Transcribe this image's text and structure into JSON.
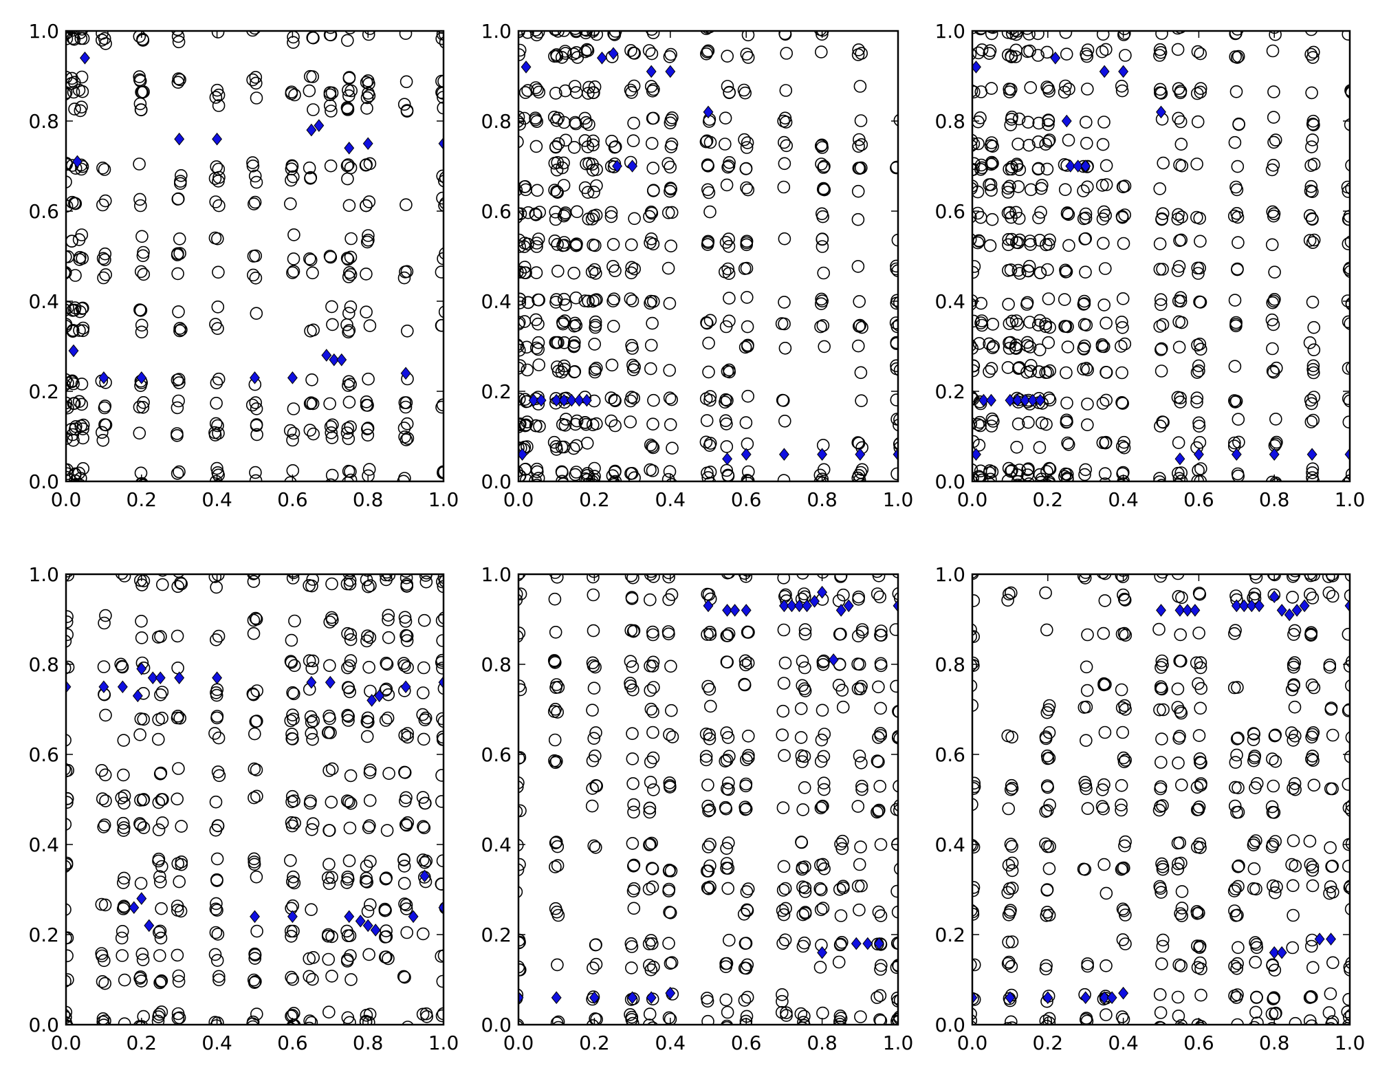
{
  "figure": {
    "layout": "2x3 grid of scatter panels",
    "colors": {
      "circle_edge": "#000000",
      "circle_fill": "none",
      "diamond_fill": "#1010e0",
      "diamond_edge": "#000000",
      "axes": "#000000"
    },
    "marker_types": [
      "open-circle",
      "filled-diamond"
    ]
  },
  "chart_data": [
    {
      "type": "scatter",
      "title": "",
      "xlabel": "",
      "ylabel": "",
      "xlim": [
        0,
        1
      ],
      "ylim": [
        0,
        1
      ],
      "xticks": [
        "0.0",
        "0.2",
        "0.4",
        "0.6",
        "0.8",
        "1.0"
      ],
      "yticks": [
        "0.0",
        "0.2",
        "0.4",
        "0.6",
        "0.8",
        "1.0"
      ],
      "grid": false,
      "circle_columns_x": [
        0.0,
        0.02,
        0.04,
        0.1,
        0.2,
        0.3,
        0.4,
        0.5,
        0.6,
        0.65,
        0.7,
        0.75,
        0.8,
        0.9,
        1.0
      ],
      "circle_rows_y": [
        0.0,
        0.02,
        0.1,
        0.12,
        0.17,
        0.22,
        0.34,
        0.38,
        0.46,
        0.5,
        0.54,
        0.62,
        0.67,
        0.7,
        0.83,
        0.86,
        0.89,
        0.98,
        1.0
      ],
      "diamonds": [
        [
          0.05,
          0.94
        ],
        [
          0.03,
          0.71
        ],
        [
          0.3,
          0.76
        ],
        [
          0.4,
          0.76
        ],
        [
          0.65,
          0.78
        ],
        [
          0.67,
          0.79
        ],
        [
          0.75,
          0.74
        ],
        [
          0.8,
          0.75
        ],
        [
          1.0,
          0.75
        ],
        [
          0.02,
          0.29
        ],
        [
          0.1,
          0.23
        ],
        [
          0.2,
          0.23
        ],
        [
          0.5,
          0.23
        ],
        [
          0.6,
          0.23
        ],
        [
          0.69,
          0.28
        ],
        [
          0.71,
          0.27
        ],
        [
          0.73,
          0.27
        ],
        [
          0.9,
          0.24
        ]
      ]
    },
    {
      "type": "scatter",
      "title": "",
      "xlabel": "",
      "ylabel": "",
      "xlim": [
        0,
        1
      ],
      "ylim": [
        0,
        1
      ],
      "xticks": [
        "0.0",
        "0.2",
        "0.4",
        "0.6",
        "0.8",
        "1.0"
      ],
      "yticks": [
        "0.0",
        "0.2",
        "0.4",
        "0.6",
        "0.8",
        "1.0"
      ],
      "grid": false,
      "circle_columns_x": [
        0.0,
        0.02,
        0.05,
        0.1,
        0.12,
        0.15,
        0.18,
        0.2,
        0.25,
        0.3,
        0.35,
        0.4,
        0.5,
        0.55,
        0.6,
        0.7,
        0.8,
        0.9,
        1.0
      ],
      "circle_rows_y": [
        0.0,
        0.02,
        0.08,
        0.13,
        0.18,
        0.25,
        0.3,
        0.35,
        0.4,
        0.47,
        0.53,
        0.59,
        0.65,
        0.7,
        0.75,
        0.8,
        0.87,
        0.95,
        1.0
      ],
      "diamonds": [
        [
          0.02,
          0.92
        ],
        [
          0.22,
          0.94
        ],
        [
          0.25,
          0.95
        ],
        [
          0.35,
          0.91
        ],
        [
          0.4,
          0.91
        ],
        [
          0.5,
          0.82
        ],
        [
          0.26,
          0.7
        ],
        [
          0.3,
          0.7
        ],
        [
          0.04,
          0.18
        ],
        [
          0.06,
          0.18
        ],
        [
          0.1,
          0.18
        ],
        [
          0.12,
          0.18
        ],
        [
          0.14,
          0.18
        ],
        [
          0.16,
          0.18
        ],
        [
          0.18,
          0.18
        ],
        [
          0.01,
          0.06
        ],
        [
          0.55,
          0.05
        ],
        [
          0.6,
          0.06
        ],
        [
          0.7,
          0.06
        ],
        [
          0.8,
          0.06
        ],
        [
          0.9,
          0.06
        ],
        [
          1.0,
          0.06
        ]
      ]
    },
    {
      "type": "scatter",
      "title": "",
      "xlabel": "",
      "ylabel": "",
      "xlim": [
        0,
        1
      ],
      "ylim": [
        0,
        1
      ],
      "xticks": [
        "0.0",
        "0.2",
        "0.4",
        "0.6",
        "0.8",
        "1.0"
      ],
      "yticks": [
        "0.0",
        "0.2",
        "0.4",
        "0.6",
        "0.8",
        "1.0"
      ],
      "grid": false,
      "circle_columns_x": [
        0.0,
        0.02,
        0.05,
        0.1,
        0.12,
        0.15,
        0.18,
        0.2,
        0.25,
        0.3,
        0.35,
        0.4,
        0.5,
        0.55,
        0.6,
        0.7,
        0.8,
        0.9,
        1.0
      ],
      "circle_rows_y": [
        0.0,
        0.02,
        0.08,
        0.13,
        0.18,
        0.25,
        0.3,
        0.35,
        0.4,
        0.47,
        0.53,
        0.59,
        0.65,
        0.7,
        0.75,
        0.8,
        0.87,
        0.95,
        1.0
      ],
      "diamonds": [
        [
          0.01,
          0.92
        ],
        [
          0.22,
          0.94
        ],
        [
          0.35,
          0.91
        ],
        [
          0.4,
          0.91
        ],
        [
          0.5,
          0.82
        ],
        [
          0.25,
          0.8
        ],
        [
          0.26,
          0.7
        ],
        [
          0.28,
          0.7
        ],
        [
          0.3,
          0.7
        ],
        [
          0.03,
          0.18
        ],
        [
          0.05,
          0.18
        ],
        [
          0.1,
          0.18
        ],
        [
          0.12,
          0.18
        ],
        [
          0.14,
          0.18
        ],
        [
          0.16,
          0.18
        ],
        [
          0.18,
          0.18
        ],
        [
          0.01,
          0.06
        ],
        [
          0.55,
          0.05
        ],
        [
          0.6,
          0.06
        ],
        [
          0.7,
          0.06
        ],
        [
          0.8,
          0.06
        ],
        [
          0.9,
          0.06
        ],
        [
          1.0,
          0.06
        ]
      ]
    },
    {
      "type": "scatter",
      "title": "",
      "xlabel": "",
      "ylabel": "",
      "xlim": [
        0,
        1
      ],
      "ylim": [
        0,
        1
      ],
      "xticks": [
        "0.0",
        "0.2",
        "0.4",
        "0.6",
        "0.8",
        "1.0"
      ],
      "yticks": [
        "0.0",
        "0.2",
        "0.4",
        "0.6",
        "0.8",
        "1.0"
      ],
      "grid": false,
      "circle_columns_x": [
        0.0,
        0.1,
        0.15,
        0.2,
        0.25,
        0.3,
        0.4,
        0.5,
        0.6,
        0.65,
        0.7,
        0.75,
        0.8,
        0.85,
        0.9,
        0.95,
        1.0
      ],
      "circle_rows_y": [
        0.0,
        0.02,
        0.1,
        0.15,
        0.2,
        0.26,
        0.32,
        0.36,
        0.44,
        0.5,
        0.56,
        0.64,
        0.68,
        0.74,
        0.8,
        0.86,
        0.9,
        0.98,
        1.0
      ],
      "diamonds": [
        [
          0.0,
          0.75
        ],
        [
          0.1,
          0.75
        ],
        [
          0.15,
          0.75
        ],
        [
          0.2,
          0.79
        ],
        [
          0.23,
          0.77
        ],
        [
          0.25,
          0.77
        ],
        [
          0.19,
          0.73
        ],
        [
          0.3,
          0.77
        ],
        [
          0.4,
          0.77
        ],
        [
          0.65,
          0.76
        ],
        [
          0.7,
          0.76
        ],
        [
          0.81,
          0.72
        ],
        [
          0.83,
          0.73
        ],
        [
          0.9,
          0.75
        ],
        [
          1.0,
          0.76
        ],
        [
          0.95,
          0.33
        ],
        [
          1.0,
          0.26
        ],
        [
          0.18,
          0.26
        ],
        [
          0.2,
          0.28
        ],
        [
          0.22,
          0.22
        ],
        [
          0.5,
          0.24
        ],
        [
          0.6,
          0.24
        ],
        [
          0.75,
          0.24
        ],
        [
          0.78,
          0.23
        ],
        [
          0.8,
          0.22
        ],
        [
          0.82,
          0.21
        ],
        [
          0.92,
          0.24
        ]
      ]
    },
    {
      "type": "scatter",
      "title": "",
      "xlabel": "",
      "ylabel": "",
      "xlim": [
        0,
        1
      ],
      "ylim": [
        0,
        1
      ],
      "xticks": [
        "0.0",
        "0.2",
        "0.4",
        "0.6",
        "0.8",
        "1.0"
      ],
      "yticks": [
        "0.0",
        "0.2",
        "0.4",
        "0.6",
        "0.8",
        "1.0"
      ],
      "grid": false,
      "circle_columns_x": [
        0.0,
        0.1,
        0.2,
        0.3,
        0.35,
        0.4,
        0.5,
        0.55,
        0.6,
        0.7,
        0.75,
        0.8,
        0.85,
        0.9,
        0.95,
        1.0
      ],
      "circle_rows_y": [
        0.0,
        0.02,
        0.06,
        0.13,
        0.18,
        0.25,
        0.3,
        0.35,
        0.4,
        0.48,
        0.53,
        0.59,
        0.64,
        0.7,
        0.75,
        0.8,
        0.87,
        0.95,
        1.0
      ],
      "diamonds": [
        [
          0.5,
          0.93
        ],
        [
          0.55,
          0.92
        ],
        [
          0.57,
          0.92
        ],
        [
          0.6,
          0.92
        ],
        [
          0.7,
          0.93
        ],
        [
          0.72,
          0.93
        ],
        [
          0.74,
          0.93
        ],
        [
          0.76,
          0.93
        ],
        [
          0.78,
          0.94
        ],
        [
          0.8,
          0.96
        ],
        [
          0.85,
          0.92
        ],
        [
          0.87,
          0.93
        ],
        [
          1.0,
          0.93
        ],
        [
          0.83,
          0.81
        ],
        [
          0.0,
          0.06
        ],
        [
          0.1,
          0.06
        ],
        [
          0.2,
          0.06
        ],
        [
          0.3,
          0.06
        ],
        [
          0.35,
          0.06
        ],
        [
          0.4,
          0.07
        ],
        [
          0.8,
          0.16
        ],
        [
          0.89,
          0.18
        ],
        [
          0.92,
          0.18
        ],
        [
          0.95,
          0.18
        ]
      ]
    },
    {
      "type": "scatter",
      "title": "",
      "xlabel": "",
      "ylabel": "",
      "xlim": [
        0,
        1
      ],
      "ylim": [
        0,
        1
      ],
      "xticks": [
        "0.0",
        "0.2",
        "0.4",
        "0.6",
        "0.8",
        "1.0"
      ],
      "yticks": [
        "0.0",
        "0.2",
        "0.4",
        "0.6",
        "0.8",
        "1.0"
      ],
      "grid": false,
      "circle_columns_x": [
        0.0,
        0.1,
        0.2,
        0.3,
        0.35,
        0.4,
        0.5,
        0.55,
        0.6,
        0.7,
        0.75,
        0.8,
        0.85,
        0.9,
        0.95,
        1.0
      ],
      "circle_rows_y": [
        0.0,
        0.02,
        0.06,
        0.13,
        0.18,
        0.25,
        0.3,
        0.35,
        0.4,
        0.48,
        0.53,
        0.59,
        0.64,
        0.7,
        0.75,
        0.8,
        0.87,
        0.95,
        1.0
      ],
      "diamonds": [
        [
          0.5,
          0.92
        ],
        [
          0.55,
          0.92
        ],
        [
          0.57,
          0.92
        ],
        [
          0.59,
          0.92
        ],
        [
          0.7,
          0.93
        ],
        [
          0.72,
          0.93
        ],
        [
          0.74,
          0.93
        ],
        [
          0.76,
          0.93
        ],
        [
          0.8,
          0.95
        ],
        [
          0.82,
          0.92
        ],
        [
          0.84,
          0.91
        ],
        [
          0.86,
          0.92
        ],
        [
          0.88,
          0.93
        ],
        [
          1.0,
          0.93
        ],
        [
          0.0,
          0.06
        ],
        [
          0.1,
          0.06
        ],
        [
          0.2,
          0.06
        ],
        [
          0.3,
          0.06
        ],
        [
          0.35,
          0.06
        ],
        [
          0.37,
          0.06
        ],
        [
          0.4,
          0.07
        ],
        [
          0.8,
          0.16
        ],
        [
          0.82,
          0.16
        ],
        [
          0.92,
          0.19
        ],
        [
          0.95,
          0.19
        ]
      ]
    }
  ]
}
